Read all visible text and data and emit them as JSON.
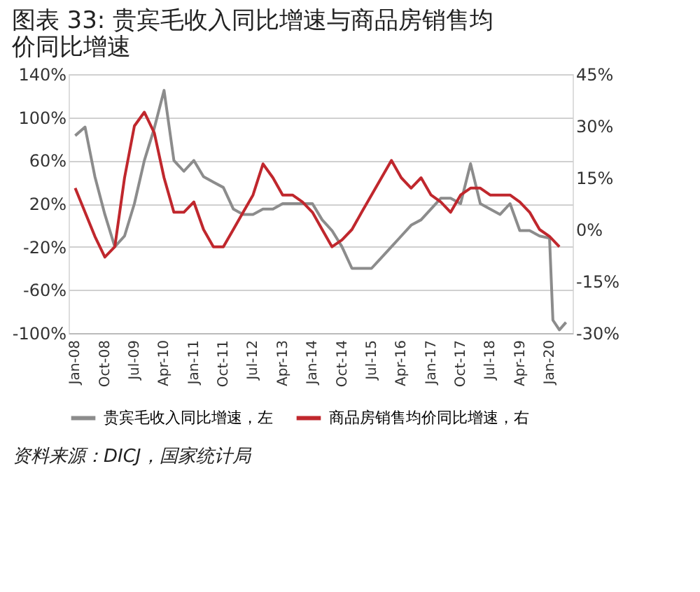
{
  "chart_data": {
    "type": "line",
    "title": "图表 33:  贵宾毛收入同比增速与商品房销售均价同比增速",
    "annotations": [
      "资料来源：DICJ，国家统计局"
    ],
    "series": [
      {
        "name": "贵宾毛收入同比增速，左",
        "color": "#8c8c8c",
        "axis": "y",
        "x": [
          "2008-01",
          "2008-04",
          "2008-07",
          "2008-10",
          "2009-01",
          "2009-04",
          "2009-07",
          "2009-10",
          "2010-01",
          "2010-04",
          "2010-07",
          "2010-10",
          "2011-01",
          "2011-04",
          "2011-07",
          "2011-10",
          "2012-01",
          "2012-04",
          "2012-07",
          "2012-10",
          "2013-01",
          "2013-04",
          "2013-07",
          "2013-10",
          "2014-01",
          "2014-04",
          "2014-07",
          "2014-10",
          "2015-01",
          "2015-04",
          "2015-07",
          "2015-10",
          "2016-01",
          "2016-04",
          "2016-07",
          "2016-10",
          "2017-01",
          "2017-04",
          "2017-07",
          "2017-10",
          "2018-01",
          "2018-04",
          "2018-07",
          "2018-10",
          "2019-01",
          "2019-04",
          "2019-07",
          "2019-10",
          "2020-01",
          "2020-02",
          "2020-04",
          "2020-06"
        ],
        "values": [
          83,
          91,
          45,
          10,
          -20,
          -10,
          20,
          60,
          90,
          125,
          60,
          50,
          60,
          45,
          40,
          35,
          15,
          10,
          10,
          15,
          15,
          20,
          20,
          20,
          20,
          5,
          -5,
          -20,
          -40,
          -40,
          -40,
          -30,
          -20,
          -10,
          0,
          5,
          15,
          25,
          25,
          20,
          57,
          20,
          15,
          10,
          20,
          -5,
          -5,
          -10,
          -12,
          -88,
          -97,
          -90
        ]
      },
      {
        "name": "商品房销售均价同比增速，右",
        "color": "#c0272d",
        "axis": "y2",
        "x": [
          "2008-01",
          "2008-04",
          "2008-07",
          "2008-10",
          "2009-01",
          "2009-04",
          "2009-07",
          "2009-10",
          "2010-01",
          "2010-04",
          "2010-07",
          "2010-10",
          "2011-01",
          "2011-04",
          "2011-07",
          "2011-10",
          "2012-01",
          "2012-04",
          "2012-07",
          "2012-10",
          "2013-01",
          "2013-04",
          "2013-07",
          "2013-10",
          "2014-01",
          "2014-04",
          "2014-07",
          "2014-10",
          "2015-01",
          "2015-04",
          "2015-07",
          "2015-10",
          "2016-01",
          "2016-04",
          "2016-07",
          "2016-10",
          "2017-01",
          "2017-04",
          "2017-07",
          "2017-10",
          "2018-01",
          "2018-04",
          "2018-07",
          "2018-10",
          "2019-01",
          "2019-04",
          "2019-07",
          "2019-10",
          "2020-01",
          "2020-04"
        ],
        "values": [
          12,
          5,
          -2,
          -8,
          -5,
          15,
          30,
          34,
          28,
          15,
          5,
          5,
          8,
          0,
          -5,
          -5,
          0,
          5,
          10,
          19,
          15,
          10,
          10,
          8,
          5,
          0,
          -5,
          -3,
          0,
          5,
          10,
          15,
          20,
          15,
          12,
          15,
          10,
          8,
          5,
          10,
          12,
          12,
          10,
          10,
          10,
          8,
          5,
          0,
          -2,
          -5
        ]
      }
    ],
    "xlim": [
      "2007-11",
      "2020-08"
    ],
    "xticks": [
      {
        "value": "2008-01",
        "label": "Jan-08"
      },
      {
        "value": "2008-10",
        "label": "Oct-08"
      },
      {
        "value": "2009-07",
        "label": "Jul-09"
      },
      {
        "value": "2010-04",
        "label": "Apr-10"
      },
      {
        "value": "2011-01",
        "label": "Jan-11"
      },
      {
        "value": "2011-10",
        "label": "Oct-11"
      },
      {
        "value": "2012-07",
        "label": "Jul-12"
      },
      {
        "value": "2013-04",
        "label": "Apr-13"
      },
      {
        "value": "2014-01",
        "label": "Jan-14"
      },
      {
        "value": "2014-10",
        "label": "Oct-14"
      },
      {
        "value": "2015-07",
        "label": "Jul-15"
      },
      {
        "value": "2016-04",
        "label": "Apr-16"
      },
      {
        "value": "2017-01",
        "label": "Jan-17"
      },
      {
        "value": "2017-10",
        "label": "Oct-17"
      },
      {
        "value": "2018-07",
        "label": "Jul-18"
      },
      {
        "value": "2019-04",
        "label": "Apr-19"
      },
      {
        "value": "2020-01",
        "label": "Jan-20"
      }
    ],
    "ylim": [
      -100,
      140
    ],
    "yticks": [
      {
        "value": -100,
        "label": "-100%"
      },
      {
        "value": -60,
        "label": "-60%"
      },
      {
        "value": -20,
        "label": "-20%"
      },
      {
        "value": 20,
        "label": "20%"
      },
      {
        "value": 60,
        "label": "60%"
      },
      {
        "value": 100,
        "label": "100%"
      },
      {
        "value": 140,
        "label": "140%"
      }
    ],
    "y2lim": [
      -30,
      45
    ],
    "y2ticks": [
      {
        "value": -30,
        "label": "-30%"
      },
      {
        "value": -15,
        "label": "-15%"
      },
      {
        "value": 0,
        "label": "0%"
      },
      {
        "value": 15,
        "label": "15%"
      },
      {
        "value": 30,
        "label": "30%"
      },
      {
        "value": 45,
        "label": "45%"
      }
    ],
    "grid": "y",
    "legend": "bottom",
    "line_style": "solid",
    "marker": "none"
  }
}
